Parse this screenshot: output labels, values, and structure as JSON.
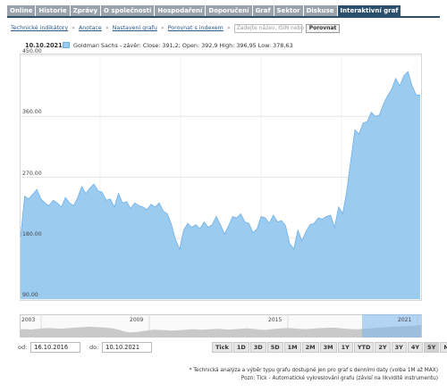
{
  "tabs": [
    {
      "label": "Online",
      "active": false
    },
    {
      "label": "Historie",
      "active": false
    },
    {
      "label": "Zprávy",
      "active": false
    },
    {
      "label": "O společnosti",
      "active": false
    },
    {
      "label": "Hospodaření",
      "active": false
    },
    {
      "label": "Doporučení",
      "active": false
    },
    {
      "label": "Graf",
      "active": false
    },
    {
      "label": "Sektor",
      "active": false
    },
    {
      "label": "Diskuse",
      "active": false
    },
    {
      "label": "Interaktivní graf",
      "active": true
    }
  ],
  "toolbar": {
    "indicators": "Technické indikátory",
    "annotations": "Anotace",
    "settings": "Nastavení grafu",
    "compare_index": "Porovnat s indexem",
    "isin_placeholder": "Zadejte název, ISIN nebo",
    "compare_button": "Porovnat"
  },
  "legend": {
    "date": "10.10.2021",
    "text": "Goldman Sachs - závěr: Close: 391,2; Open: 392,9 High: 396,95 Low: 378,63",
    "color": "#9ccbf0"
  },
  "chart_data": {
    "type": "area",
    "ylim": [
      90,
      450
    ],
    "yticks": [
      "450.00",
      "360.00",
      "270.00",
      "180.00",
      "90.00"
    ],
    "x_start": "16.10.2016",
    "x_end": "10.10.2021",
    "series": [
      {
        "values": [
          182,
          242,
          238,
          245,
          252,
          238,
          232,
          228,
          236,
          232,
          226,
          240,
          232,
          228,
          240,
          256,
          246,
          254,
          260,
          250,
          248,
          236,
          238,
          226,
          246,
          232,
          234,
          224,
          232,
          228,
          226,
          222,
          230,
          226,
          232,
          220,
          216,
          200,
          178,
          164,
          192,
          202,
          196,
          200,
          194,
          204,
          196,
          200,
          212,
          200,
          186,
          198,
          212,
          210,
          216,
          204,
          202,
          188,
          194,
          212,
          210,
          202,
          214,
          204,
          206,
          198,
          172,
          164,
          192,
          176,
          190,
          200,
          202,
          210,
          208,
          212,
          214,
          196,
          226,
          216,
          250,
          296,
          340,
          334,
          350,
          352,
          366,
          360,
          362,
          378,
          390,
          400,
          416,
          405,
          420,
          426,
          405,
          392,
          391
        ]
      }
    ],
    "navigator": {
      "labels": [
        "2003",
        "2009",
        "2015",
        "2021"
      ],
      "values": [
        60,
        62,
        58,
        64,
        70,
        72,
        68,
        66,
        70,
        74,
        78,
        80,
        84,
        82,
        78,
        74,
        68,
        56,
        40,
        30,
        36,
        42,
        50,
        56,
        54,
        52,
        48,
        50,
        54,
        58,
        60,
        56,
        58,
        62,
        64,
        60,
        58,
        62,
        66,
        68,
        64,
        58,
        54,
        60,
        66,
        70,
        72,
        68,
        64,
        62,
        66,
        70,
        72,
        74,
        76,
        70,
        66,
        62,
        60,
        64,
        68,
        72,
        76,
        80,
        84,
        86,
        90,
        92,
        96,
        100
      ]
    }
  },
  "range": {
    "from_label": "od:",
    "from_value": "16.10.2016",
    "to_label": "do:",
    "to_value": "10.10.2021"
  },
  "periods": [
    {
      "label": "Tick",
      "active": false
    },
    {
      "label": "1D",
      "active": false
    },
    {
      "label": "3D",
      "active": false
    },
    {
      "label": "5D",
      "active": false
    },
    {
      "label": "1M",
      "active": false
    },
    {
      "label": "2M",
      "active": false
    },
    {
      "label": "3M",
      "active": false
    },
    {
      "label": "1Y",
      "active": false
    },
    {
      "label": "YTD",
      "active": false
    },
    {
      "label": "2Y",
      "active": false
    },
    {
      "label": "3Y",
      "active": false
    },
    {
      "label": "4Y",
      "active": false
    },
    {
      "label": "5Y",
      "active": true
    },
    {
      "label": "Max",
      "active": false
    }
  ],
  "footnote": {
    "line1": "* Technická analýza a výběr typu grafu dostupné jen pro graf s denními daty (volba 1M až MAX)",
    "line2": "Pozn: Tick - Automatické vykreslování grafu (závisí na likviditě instrumentu)"
  }
}
